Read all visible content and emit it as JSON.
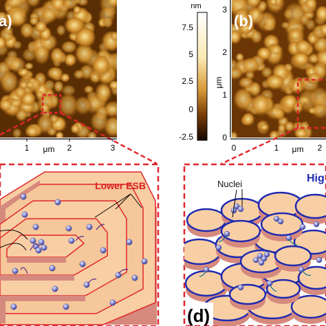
{
  "panels": {
    "a": {
      "label": "a)",
      "x_ticks": [
        "1",
        "2",
        "3"
      ],
      "x_unit": "μm"
    },
    "b": {
      "label": "(b)",
      "x_ticks": [
        "0",
        "1",
        "2"
      ],
      "x_unit": "μm",
      "y_ticks": [
        "3",
        "2",
        "1",
        "0"
      ],
      "y_unit": "μm"
    },
    "c": {
      "lower_esb_label": "Lower ESB"
    },
    "d": {
      "label": "(d)",
      "nuclei_label": "Nuclei",
      "higher_label": "Hig"
    }
  },
  "colorbar": {
    "unit": "nm",
    "ticks": [
      "7.5",
      "5",
      "2.5",
      "0",
      "-2.5"
    ]
  },
  "colors": {
    "afm_dark": "#3a1c00",
    "afm_mid": "#9a5a10",
    "afm_bright": "#f8dc7a",
    "dashed_red": "#e0262b",
    "terrace_fill": "#f8cfa5",
    "terrace_side": "#d68a7e",
    "lower_esb_text": "#d82020",
    "higher_text": "#1f2ab0",
    "blue_edge": "#1f2ab0"
  }
}
